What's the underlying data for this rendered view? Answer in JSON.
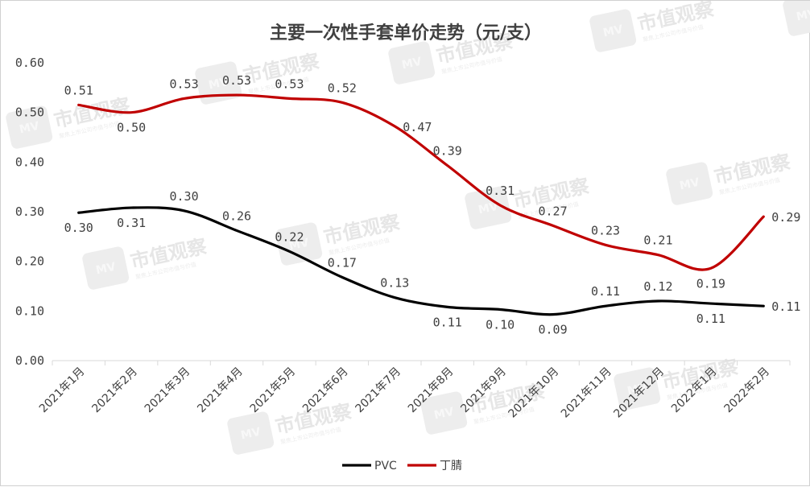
{
  "chart_data": {
    "type": "line",
    "title": "主要一次性手套单价走势（元/支）",
    "categories": [
      "2021年1月",
      "2021年2月",
      "2021年3月",
      "2021年4月",
      "2021年5月",
      "2021年6月",
      "2021年7月",
      "2021年8月",
      "2021年9月",
      "2021年10月",
      "2021年11月",
      "2021年12月",
      "2022年1月",
      "2022年2月"
    ],
    "series": [
      {
        "name": "PVC",
        "color": "#000000",
        "values": [
          0.298,
          0.308,
          0.302,
          0.262,
          0.22,
          0.168,
          0.127,
          0.108,
          0.103,
          0.093,
          0.11,
          0.12,
          0.115,
          0.11
        ],
        "labels": [
          "0.30",
          "0.31",
          "0.30",
          "0.26",
          "0.22",
          "0.17",
          "0.13",
          "0.11",
          "0.10",
          "0.09",
          "0.11",
          "0.12",
          "0.11",
          "0.11"
        ],
        "label_pos": [
          "below",
          "below",
          "above",
          "above",
          "above",
          "above",
          "above",
          "below",
          "below",
          "below",
          "above",
          "above",
          "below",
          "right"
        ]
      },
      {
        "name": "丁腈",
        "color": "#c00000",
        "values": [
          0.515,
          0.5,
          0.528,
          0.535,
          0.528,
          0.52,
          0.472,
          0.393,
          0.313,
          0.272,
          0.233,
          0.213,
          0.186,
          0.29
        ],
        "labels": [
          "0.51",
          "0.50",
          "0.53",
          "0.53",
          "0.53",
          "0.52",
          "0.47",
          "0.39",
          "0.31",
          "0.27",
          "0.23",
          "0.21",
          "0.19",
          "0.29"
        ],
        "label_pos": [
          "above",
          "below",
          "above",
          "above",
          "above",
          "above",
          "right",
          "above",
          "above",
          "above",
          "above",
          "above",
          "below",
          "right"
        ]
      }
    ],
    "yticks": [
      "0.00",
      "0.10",
      "0.20",
      "0.30",
      "0.40",
      "0.50",
      "0.60"
    ],
    "ylim": [
      0,
      0.6
    ],
    "legend_position": "bottom",
    "grid": false
  },
  "watermark": {
    "text": "市值观察",
    "sub": "聚焦上市公司市值与价值",
    "badge": "MV"
  }
}
